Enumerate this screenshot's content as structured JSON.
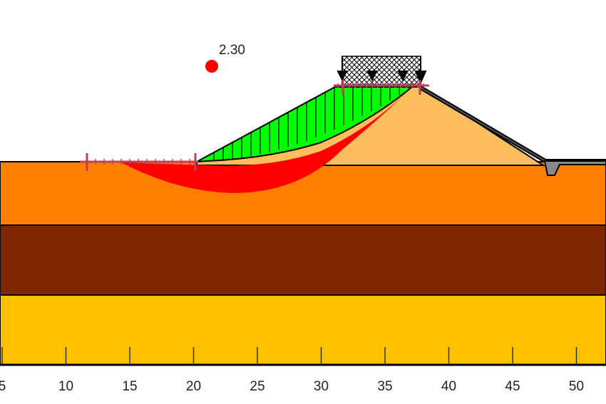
{
  "factor_of_safety": {
    "label": "2.30",
    "value": 2.3
  },
  "axis": {
    "ticks": [
      5,
      10,
      15,
      20,
      25,
      30,
      35,
      40,
      45,
      50
    ]
  },
  "colors": {
    "layer_top": "#FF8000",
    "layer_middle": "#7F2600",
    "layer_bottom": "#FFC000",
    "embankment": "#FDBE5B",
    "slip_mass": "#00FF00",
    "slip_surface": "#FF0000",
    "limits": "#C0405A"
  }
}
